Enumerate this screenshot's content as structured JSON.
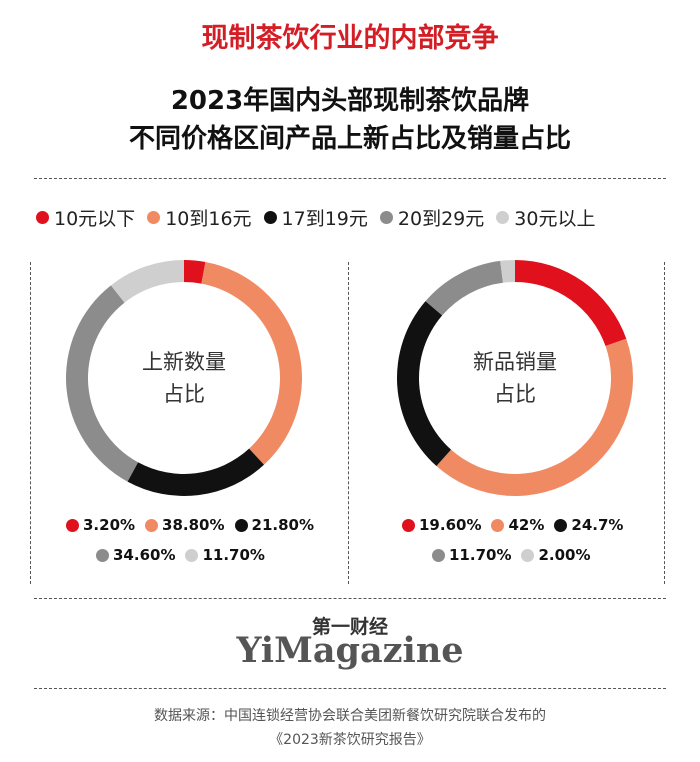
{
  "header": {
    "title": "现制茶饮行业的内部竞争"
  },
  "main": {
    "title_line1": "2023年国内头部现制茶饮品牌",
    "title_line2": "不同价格区间产品上新占比及销量占比"
  },
  "legend": [
    {
      "label": "10元以下",
      "color": "#e0111c"
    },
    {
      "label": "10到16元",
      "color": "#f08a63"
    },
    {
      "label": "17到19元",
      "color": "#111111"
    },
    {
      "label": "20到29元",
      "color": "#8c8c8c"
    },
    {
      "label": "30元以上",
      "color": "#cfcfcf"
    }
  ],
  "chart_data": [
    {
      "type": "pie",
      "center_label_line1": "上新数量",
      "center_label_line2": "占比",
      "categories": [
        "10元以下",
        "10到16元",
        "17到19元",
        "20到29元",
        "30元以上"
      ],
      "values": [
        3.2,
        38.8,
        21.8,
        34.6,
        11.7
      ],
      "value_labels": [
        "3.20%",
        "38.80%",
        "21.80%",
        "34.60%",
        "11.70%"
      ]
    },
    {
      "type": "pie",
      "center_label_line1": "新品销量",
      "center_label_line2": "占比",
      "categories": [
        "10元以下",
        "10到16元",
        "17到19元",
        "20到29元",
        "30元以上"
      ],
      "values": [
        19.6,
        42,
        24.7,
        11.7,
        2.0
      ],
      "value_labels": [
        "19.60%",
        "42%",
        "24.7%",
        "11.70%",
        "2.00%"
      ]
    }
  ],
  "brand": {
    "chinese": "第一财经",
    "english": "YiMagazine"
  },
  "source": {
    "line1": "数据来源：中国连锁经营协会联合美团新餐饮研究院联合发布的",
    "line2": "《2023新茶饮研究报告》"
  }
}
